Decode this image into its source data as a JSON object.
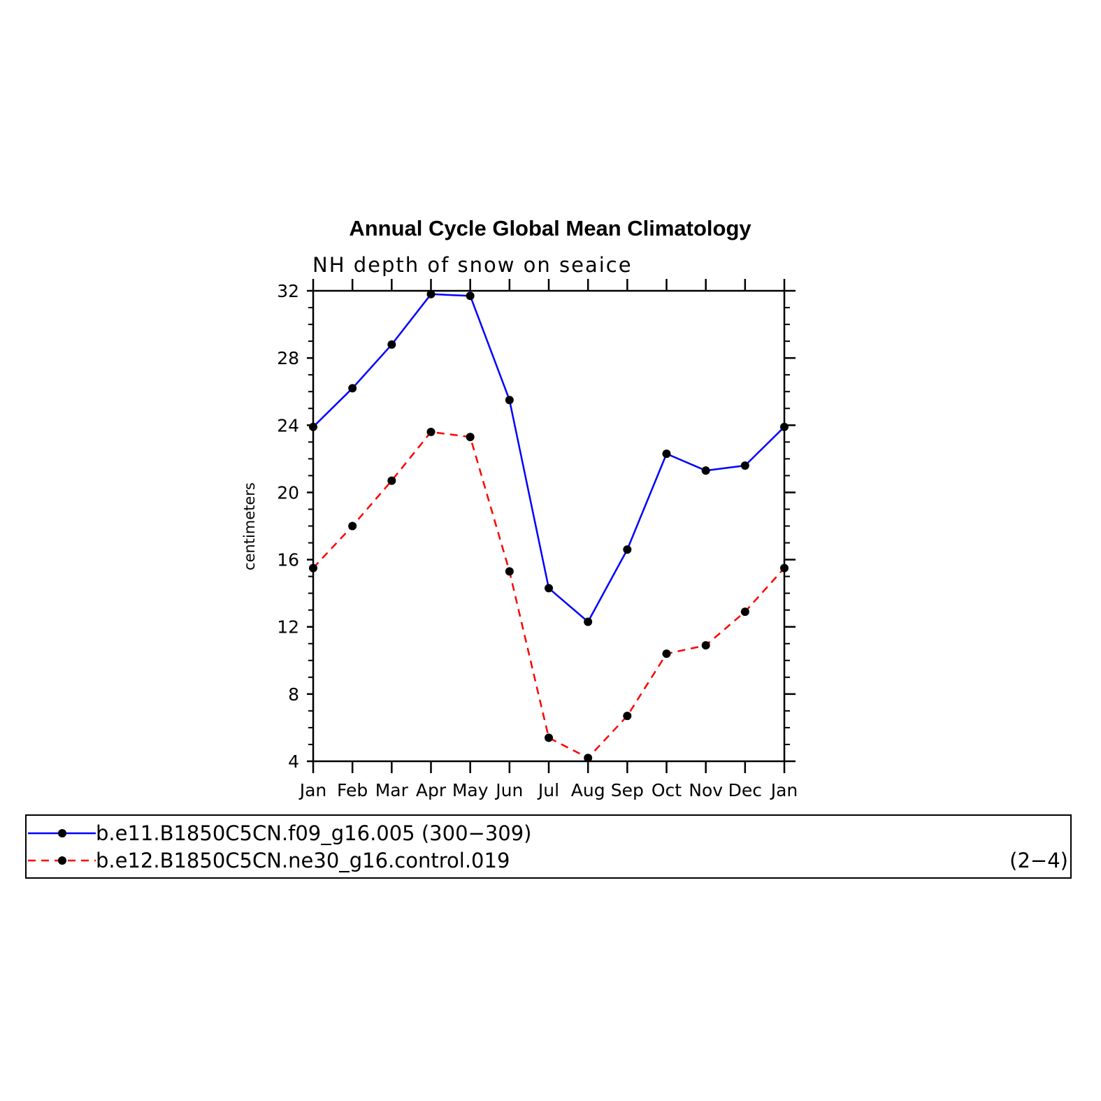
{
  "chart_data": {
    "type": "line",
    "title": "Annual Cycle Global Mean Climatology",
    "subtitle": "NH depth of snow on seaice",
    "ylabel": "centimeters",
    "xlabel": "",
    "categories": [
      "Jan",
      "Feb",
      "Mar",
      "Apr",
      "May",
      "Jun",
      "Jul",
      "Aug",
      "Sep",
      "Oct",
      "Nov",
      "Dec",
      "Jan"
    ],
    "ylim": [
      4,
      32
    ],
    "yticks": [
      "4",
      "8",
      "12",
      "16",
      "20",
      "24",
      "28",
      "32"
    ],
    "grid": false,
    "legend_position": "bottom",
    "series": [
      {
        "name": "b.e11.B1850C5CN.f09_g16.005 (300−309)",
        "color": "#0000ff",
        "dash": "solid",
        "marker": "filled-circle",
        "values": [
          23.9,
          26.2,
          28.8,
          31.8,
          31.7,
          25.5,
          14.3,
          12.3,
          16.6,
          22.3,
          21.3,
          21.6,
          23.9
        ]
      },
      {
        "name": "b.e12.B1850C5CN.ne30_g16.control.019",
        "years": "(2−4)",
        "color": "#ff0000",
        "dash": "dashed",
        "marker": "filled-circle",
        "values": [
          15.5,
          18.0,
          20.7,
          23.6,
          23.3,
          15.3,
          5.4,
          4.2,
          6.7,
          10.4,
          10.9,
          12.9,
          15.5
        ]
      }
    ]
  }
}
